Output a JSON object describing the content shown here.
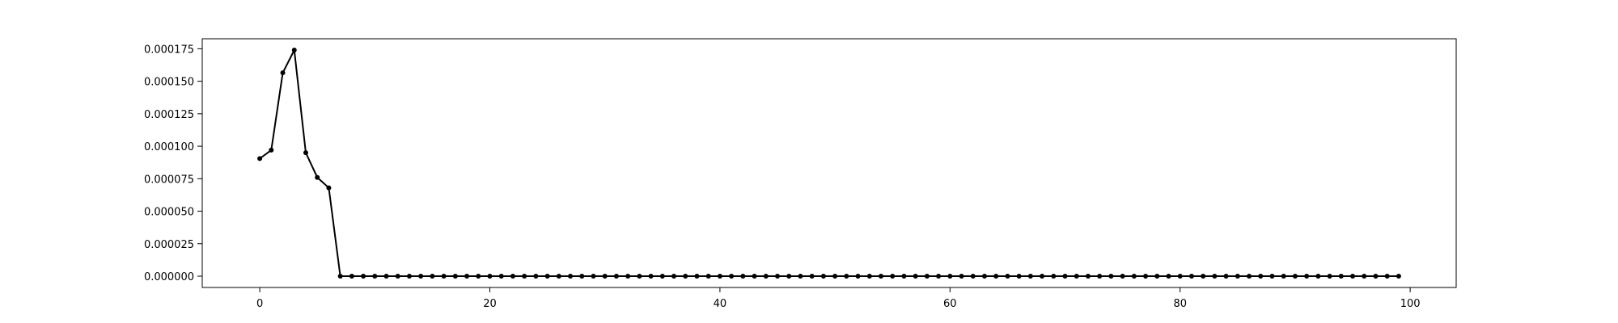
{
  "chart_data": {
    "type": "line",
    "title": "",
    "xlabel": "",
    "ylabel": "",
    "xlim": [
      -5,
      104
    ],
    "ylim": [
      -8.7e-06,
      0.0001827
    ],
    "xticks": [
      0,
      20,
      40,
      60,
      80,
      100
    ],
    "xtick_labels": [
      "0",
      "20",
      "40",
      "60",
      "80",
      "100"
    ],
    "yticks": [
      0,
      2.5e-05,
      5e-05,
      7.5e-05,
      0.0001,
      0.000125,
      0.00015,
      0.000175
    ],
    "ytick_labels": [
      "0.000000",
      "0.000025",
      "0.000050",
      "0.000075",
      "0.000100",
      "0.000125",
      "0.000150",
      "0.000175"
    ],
    "grid": false,
    "series": [
      {
        "color": "#000000",
        "marker": "dot",
        "x_start": 0,
        "x_step": 1,
        "values": [
          9.05e-05,
          9.7e-05,
          0.0001565,
          0.000174,
          9.5e-05,
          7.6e-05,
          6.8e-05,
          0.0,
          0,
          0,
          0,
          0,
          0,
          0,
          0,
          0,
          0,
          0,
          0,
          0,
          0,
          0,
          0,
          0,
          0,
          0,
          0,
          0,
          0,
          0,
          0,
          0,
          0,
          0,
          0,
          0,
          0,
          0,
          0,
          0,
          0,
          0,
          0,
          0,
          0,
          0,
          0,
          0,
          0,
          0,
          0,
          0,
          0,
          0,
          0,
          0,
          0,
          0,
          0,
          0,
          0,
          0,
          0,
          0,
          0,
          0,
          0,
          0,
          0,
          0,
          0,
          0,
          0,
          0,
          0,
          0,
          0,
          0,
          0,
          0,
          0,
          0,
          0,
          0,
          0,
          0,
          0,
          0,
          0,
          0,
          0,
          0,
          0,
          0,
          0,
          0,
          0,
          0,
          0,
          0
        ]
      }
    ]
  }
}
